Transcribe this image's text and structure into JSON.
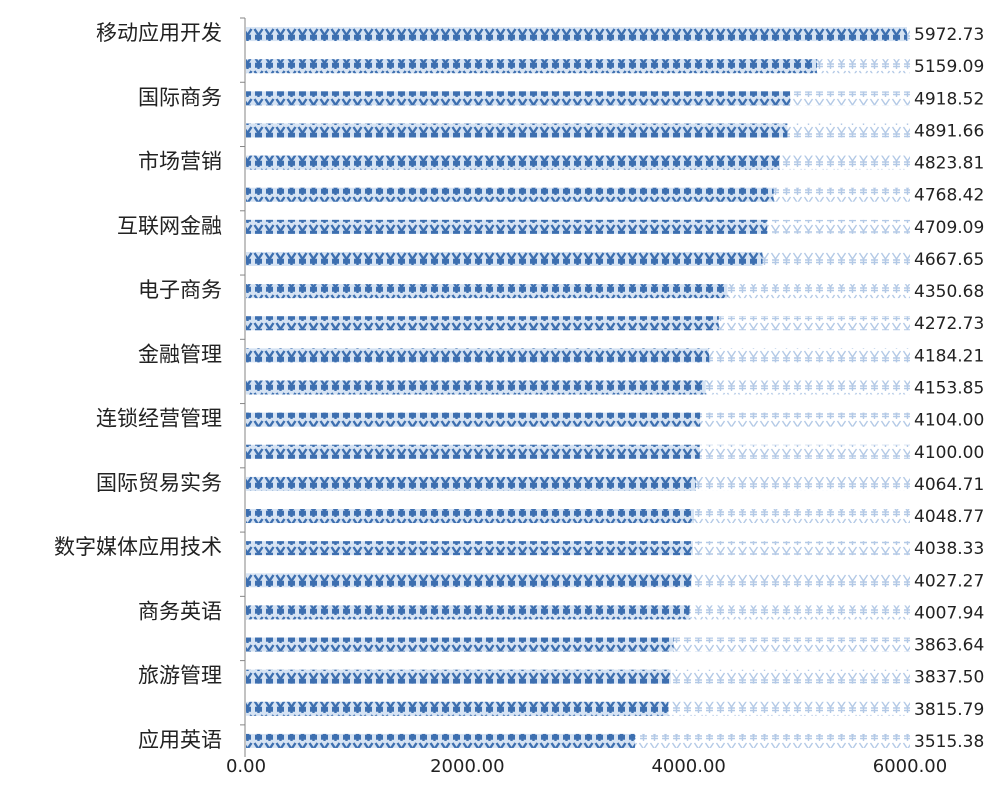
{
  "chart_data": {
    "type": "bar",
    "orientation": "horizontal",
    "categories": [
      "移动应用开发",
      null,
      "国际商务",
      null,
      "市场营销",
      null,
      "互联网金融",
      null,
      "电子商务",
      null,
      "金融管理",
      null,
      "连锁经营管理",
      null,
      "国际贸易实务",
      null,
      "数字媒体应用技术",
      null,
      "商务英语",
      null,
      "旅游管理",
      null,
      "应用英语"
    ],
    "values": [
      5972.73,
      5159.09,
      4918.52,
      4891.66,
      4823.81,
      4768.42,
      4709.09,
      4667.65,
      4350.68,
      4272.73,
      4184.21,
      4153.85,
      4104.0,
      4100.0,
      4064.71,
      4048.77,
      4038.33,
      4027.27,
      4007.94,
      3863.64,
      3837.5,
      3815.79,
      3515.38
    ],
    "value_labels": [
      "5972.73",
      "5159.09",
      "4918.52",
      "4891.66",
      "4823.81",
      "4768.42",
      "4709.09",
      "4667.65",
      "4350.68",
      "4272.73",
      "4184.21",
      "4153.85",
      "4104.00",
      "4100.00",
      "4064.71",
      "4048.77",
      "4038.33",
      "4027.27",
      "4007.94",
      "3863.64",
      "3837.50",
      "3815.79",
      "3515.38"
    ],
    "color": "#3d6fb0",
    "xlim": [
      0,
      6000
    ],
    "xticks": [
      {
        "value": 0,
        "label": "0.00"
      },
      {
        "value": 2000,
        "label": "2000.00"
      },
      {
        "value": 4000,
        "label": "4000.00"
      },
      {
        "value": 6000,
        "label": "6000.00"
      }
    ]
  }
}
